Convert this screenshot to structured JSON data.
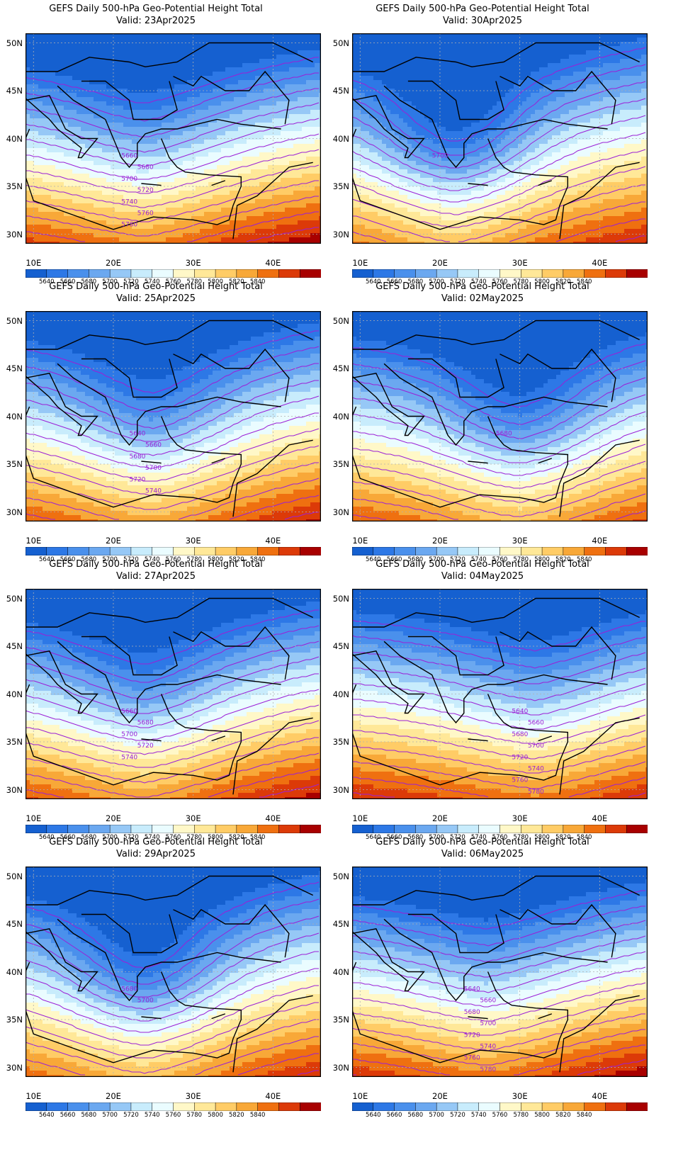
{
  "product": "GEFS Daily 500-hPa Geo-Potential Height Total",
  "lat_ticks": [
    "50N",
    "45N",
    "40N",
    "35N",
    "30N"
  ],
  "lon_ticks": [
    "10E",
    "20E",
    "30E",
    "40E"
  ],
  "colorbar": {
    "labels": [
      "5640",
      "5660",
      "5680",
      "5700",
      "5720",
      "5740",
      "5760",
      "5780",
      "5800",
      "5820",
      "5840"
    ],
    "colors": [
      "#1560d0",
      "#2d78e6",
      "#4a90ec",
      "#6ba8f0",
      "#96c8f6",
      "#c8ecfc",
      "#eafcff",
      "#fff8c8",
      "#ffe898",
      "#ffcc66",
      "#f8a838",
      "#ef7010",
      "#dc3a08",
      "#a80000"
    ]
  },
  "panels": [
    {
      "title": "GEFS Daily 500-hPa Geo-Potential Height Total",
      "valid": "Valid: 23Apr2025",
      "contour_labels": [
        "5660",
        "5680",
        "5700",
        "5720",
        "5740",
        "5760",
        "5780"
      ],
      "center": 24,
      "base": 1.8,
      "amp": 3.5,
      "k": 0.12,
      "trough": 0.6
    },
    {
      "title": "GEFS Daily 500-hPa Geo-Potential Height Total",
      "valid": "Valid: 30Apr2025",
      "contour_labels": [
        "5700"
      ],
      "center": 22,
      "base": 2.6,
      "amp": 6.5,
      "k": 0.06,
      "trough": 2.2
    },
    {
      "title": "GEFS Daily 500-hPa Geo-Potential Height Total",
      "valid": "Valid: 25Apr2025",
      "contour_labels": [
        "5640",
        "5660",
        "5680",
        "5700",
        "5720",
        "5740"
      ],
      "center": 25,
      "base": 2.2,
      "amp": 5.2,
      "k": 0.08,
      "trough": 1.2
    },
    {
      "title": "GEFS Daily 500-hPa Geo-Potential Height Total",
      "valid": "Valid: 02May2025",
      "contour_labels": [
        "5680"
      ],
      "center": 30,
      "base": 2.6,
      "amp": 5.5,
      "k": 0.07,
      "trough": 1.6
    },
    {
      "title": "GEFS Daily 500-hPa Geo-Potential Height Total",
      "valid": "Valid: 27Apr2025",
      "contour_labels": [
        "5660",
        "5680",
        "5700",
        "5720",
        "5740"
      ],
      "center": 24,
      "base": 2.0,
      "amp": 4.4,
      "k": 0.1,
      "trough": 0.9
    },
    {
      "title": "GEFS Daily 500-hPa Geo-Potential Height Total",
      "valid": "Valid: 04May2025",
      "contour_labels": [
        "5640",
        "5660",
        "5680",
        "5700",
        "5720",
        "5740",
        "5760",
        "5780"
      ],
      "center": 32,
      "base": 1.7,
      "amp": 3.0,
      "k": 0.11,
      "trough": 0.4
    },
    {
      "title": "GEFS Daily 500-hPa Geo-Potential Height Total",
      "valid": "Valid: 29Apr2025",
      "contour_labels": [
        "5680",
        "5700"
      ],
      "center": 24,
      "base": 2.5,
      "amp": 6.2,
      "k": 0.06,
      "trough": 2.0
    },
    {
      "title": "GEFS Daily 500-hPa Geo-Potential Height Total",
      "valid": "Valid: 06May2025",
      "contour_labels": [
        "5640",
        "5660",
        "5680",
        "5700",
        "5720",
        "5740",
        "5760",
        "5780"
      ],
      "center": 26,
      "base": 1.6,
      "amp": 3.2,
      "k": 0.12,
      "trough": 0.3
    }
  ]
}
